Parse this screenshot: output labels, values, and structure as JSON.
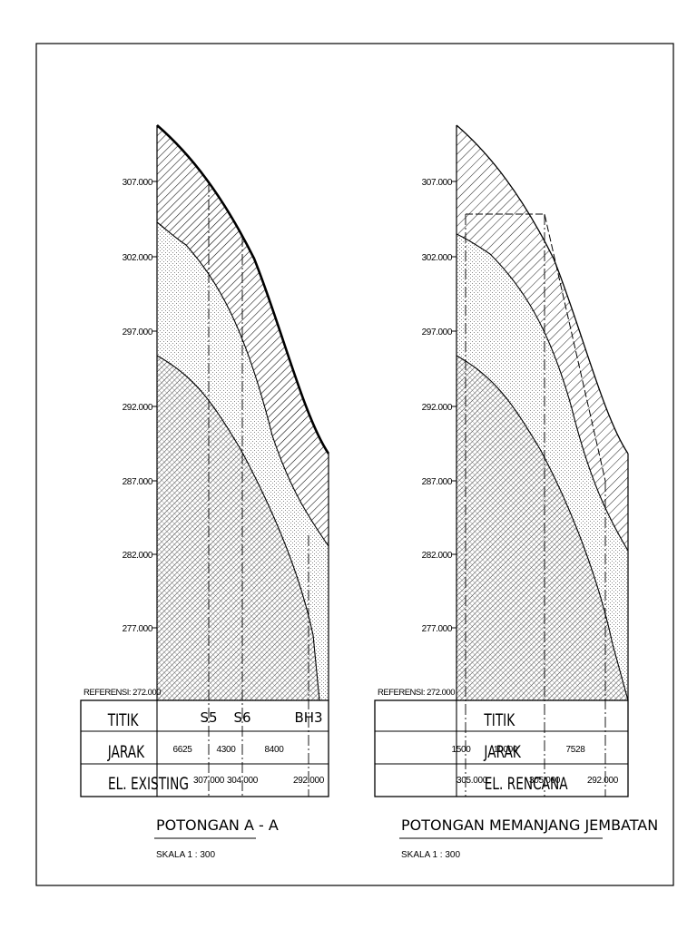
{
  "left": {
    "title": "POTONGAN A - A",
    "scale": "SKALA 1 : 300",
    "reference": "REFERENSI: 272.000",
    "ticks": [
      "307.000",
      "302.000",
      "297.000",
      "292.000",
      "287.000",
      "282.000",
      "277.000"
    ],
    "row_labels": [
      "TITIK",
      "JARAK",
      "EL. EXISTING"
    ],
    "points": [
      "S5",
      "S6",
      "BH3"
    ],
    "distances": [
      "6625",
      "4300",
      "8400"
    ],
    "elevations": [
      "307.000",
      "304.000",
      "292.000"
    ]
  },
  "right": {
    "title": "POTONGAN MEMANJANG JEMBATAN",
    "scale": "SKALA 1 : 300",
    "reference": "REFERENSI: 272.000",
    "ticks": [
      "307.000",
      "302.000",
      "297.000",
      "292.000",
      "287.000",
      "282.000",
      "277.000"
    ],
    "row_labels": [
      "TITIK",
      "JARAK",
      "EL. RENCANA"
    ],
    "distances": [
      "1500",
      "10000",
      "7528"
    ],
    "elevations": [
      "305.000",
      "305.000",
      "292.000"
    ]
  }
}
